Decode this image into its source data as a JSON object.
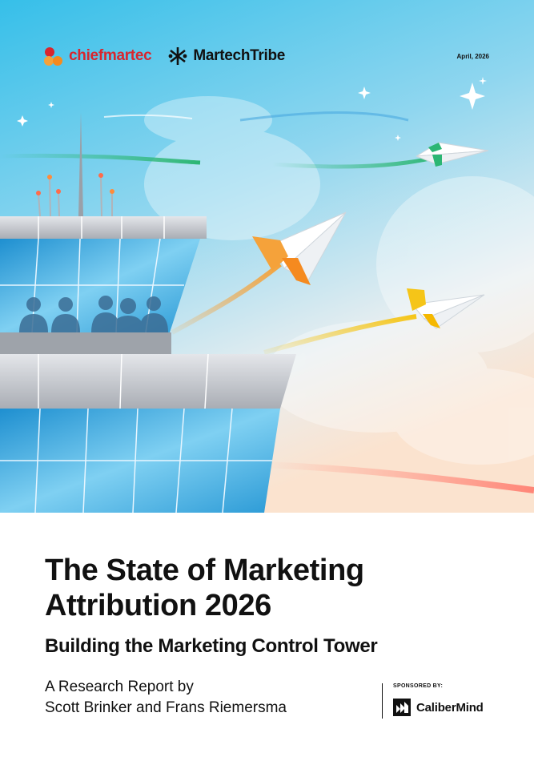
{
  "header": {
    "logo_chiefmartec": "chiefmartec",
    "logo_martechtribe": "MartechTribe",
    "date": "April, 2026"
  },
  "cover": {
    "title_line1": "The State of Marketing",
    "title_line2": "Attribution 2026",
    "subtitle": "Building the Marketing Control Tower",
    "byline_line1": "A Research Report by",
    "byline_line2": "Scott Brinker and Frans Riemersma"
  },
  "sponsor": {
    "label": "SPONSORED BY:",
    "name": "CaliberMind"
  },
  "colors": {
    "sky_top": "#3ec2ea",
    "sky_bottom": "#fbe7d6",
    "accent_orange": "#f5a23a",
    "accent_yellow": "#f5c518",
    "accent_green": "#2bb673",
    "brand_red": "#d8262e"
  },
  "icons": {
    "chiefmartec": "chiefmartec-dots-icon",
    "martechtribe": "martechtribe-knot-icon",
    "calibermind": "calibermind-mark-icon"
  }
}
